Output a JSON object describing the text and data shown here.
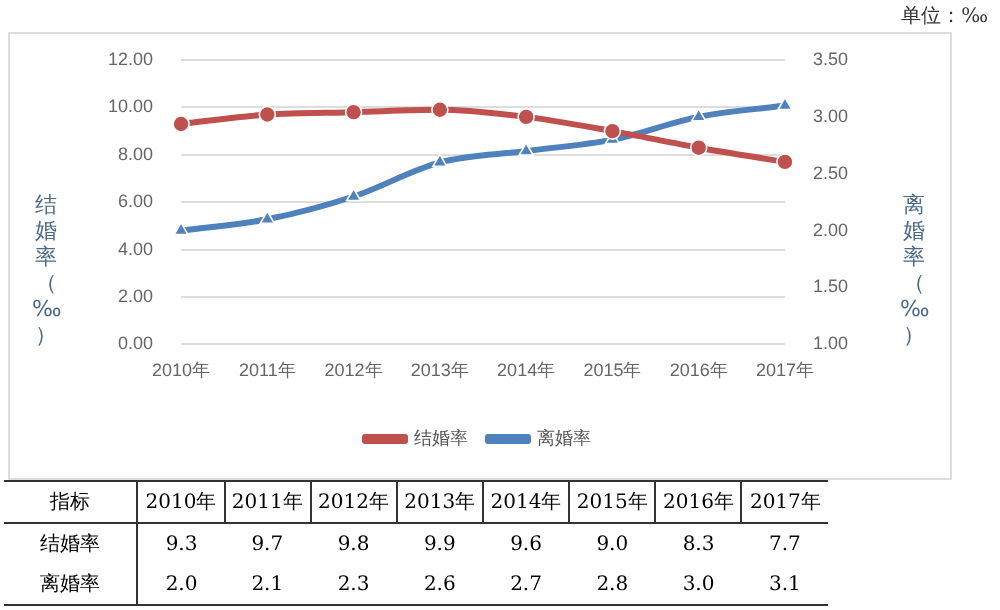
{
  "chart_data": {
    "type": "line",
    "categories": [
      "2010年",
      "2011年",
      "2012年",
      "2013年",
      "2014年",
      "2015年",
      "2016年",
      "2017年"
    ],
    "series": [
      {
        "name": "结婚率",
        "color": "#c0504d",
        "marker": "circle",
        "values": [
          9.3,
          9.7,
          9.8,
          9.9,
          9.6,
          9.0,
          8.3,
          7.7
        ],
        "value_labels": [
          "9.3",
          "9.7",
          "9.8",
          "9.9",
          "9.6",
          "9.0",
          "8.3",
          "7.7"
        ]
      },
      {
        "name": "离婚率",
        "color": "#4f81bd",
        "marker": "triangle",
        "axis": "y2",
        "values": [
          2.0,
          2.1,
          2.3,
          2.6,
          2.7,
          2.8,
          3.0,
          3.1
        ],
        "value_labels": [
          "2.0",
          "2.1",
          "2.3",
          "2.6",
          "2.7",
          "2.8",
          "3.0",
          "3.1"
        ]
      }
    ],
    "ylabel": "结婚率（‰）",
    "y2label": "离婚率（‰）",
    "legend_title": "指标",
    "ylim": [
      0,
      12
    ],
    "yticks": [
      {
        "value": 0,
        "label": "0.00"
      },
      {
        "value": 2,
        "label": "2.00"
      },
      {
        "value": 4,
        "label": "4.00"
      },
      {
        "value": 6,
        "label": "6.00"
      },
      {
        "value": 8,
        "label": "8.00"
      },
      {
        "value": 10,
        "label": "10.00"
      },
      {
        "value": 12,
        "label": "12.00"
      }
    ],
    "y2lim": [
      1,
      3.5
    ],
    "y2ticks": [
      {
        "value": 1,
        "label": "1.00"
      },
      {
        "value": 1.5,
        "label": "1.50"
      },
      {
        "value": 2,
        "label": "2.00"
      },
      {
        "value": 2.5,
        "label": "2.50"
      },
      {
        "value": 3,
        "label": "3.00"
      },
      {
        "value": 3.5,
        "label": "3.50"
      }
    ],
    "grid": "y",
    "legend": "bottom",
    "annotations": [
      "单位：‰"
    ]
  }
}
